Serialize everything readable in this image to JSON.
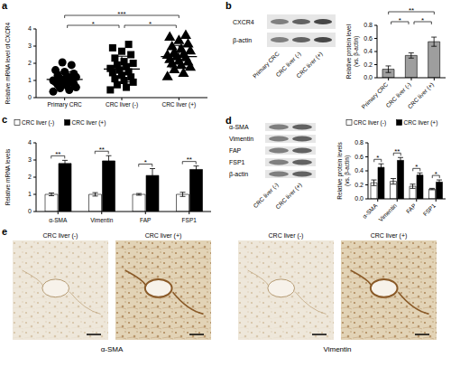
{
  "chart_data": [
    {
      "type": "scatter",
      "title": "a",
      "y_label": "Relative mRNA level of CXCR4",
      "ylim": [
        0,
        4
      ],
      "yticks": [
        0,
        1,
        2,
        3,
        4
      ],
      "series": [
        {
          "name": "Primary CRC",
          "color": "#000000",
          "marker": "circle",
          "values": [
            0.35,
            0.45,
            0.55,
            0.6,
            0.7,
            0.75,
            0.8,
            0.85,
            0.9,
            0.95,
            1.0,
            1.0,
            1.05,
            1.1,
            1.2,
            1.25,
            1.3,
            1.4,
            1.5,
            1.6,
            1.9,
            2.05
          ],
          "mean": 1.06,
          "error": 0.45
        },
        {
          "name": "CRC liver (-)",
          "color": "#000000",
          "marker": "square",
          "values": [
            0.45,
            0.6,
            0.75,
            0.9,
            1.0,
            1.1,
            1.2,
            1.3,
            1.45,
            1.5,
            1.6,
            1.7,
            1.8,
            1.9,
            2.0,
            2.1,
            2.3,
            2.5,
            2.7,
            2.9,
            3.1
          ],
          "mean": 1.66,
          "error": 0.75
        },
        {
          "name": "CRC liver (+)",
          "color": "#000000",
          "marker": "triangle",
          "values": [
            1.2,
            1.4,
            1.6,
            1.75,
            1.85,
            1.95,
            2.05,
            2.1,
            2.2,
            2.3,
            2.35,
            2.45,
            2.5,
            2.6,
            2.7,
            2.8,
            2.95,
            3.1,
            3.3,
            3.5,
            3.6
          ],
          "mean": 2.39,
          "error": 0.65
        }
      ],
      "annotations": [
        {
          "text": "*",
          "from": "Primary CRC",
          "to": "CRC liver (-)"
        },
        {
          "text": "***",
          "from": "Primary CRC",
          "to": "CRC liver (+)"
        },
        {
          "text": "*",
          "from": "CRC liver (-)",
          "to": "CRC liver (+)"
        }
      ]
    },
    {
      "type": "bar",
      "title": "b",
      "y_label": "Relative protein level (vs. β-actin)",
      "categories": [
        "Primary CRC",
        "CRC liver (-)",
        "CRC liver (+)"
      ],
      "values": [
        0.13,
        0.34,
        0.55
      ],
      "errors": [
        0.05,
        0.04,
        0.07
      ],
      "color": "#9e9e9e",
      "ylim": [
        0,
        0.8
      ],
      "yticks": [
        {
          "value": 0,
          "label": "0.0"
        },
        0.2,
        0.4,
        0.6,
        0.8
      ],
      "annotations": [
        {
          "text": "*",
          "from": "Primary CRC",
          "to": "CRC liver (-)"
        },
        {
          "text": "**",
          "from": "Primary CRC",
          "to": "CRC liver (+)"
        },
        {
          "text": "*",
          "from": "CRC liver (-)",
          "to": "CRC liver (+)"
        }
      ]
    },
    {
      "type": "bar",
      "title": "c",
      "y_label": "Relative mRNA levels",
      "categories": [
        "α-SMA",
        "Vimentin",
        "FAP",
        "FSP1"
      ],
      "series": [
        {
          "name": "CRC liver (-)",
          "color": "#ffffff",
          "values": [
            1.0,
            1.0,
            1.0,
            1.0
          ],
          "errors": [
            0.08,
            0.1,
            0.05,
            0.12
          ]
        },
        {
          "name": "CRC liver (+)",
          "color": "#000000",
          "values": [
            2.8,
            2.95,
            2.1,
            2.45
          ],
          "errors": [
            0.18,
            0.3,
            0.4,
            0.2
          ]
        }
      ],
      "ylim": [
        0,
        4
      ],
      "yticks": [
        0,
        1,
        2,
        3,
        4
      ],
      "legend": "top-left",
      "annotations": [
        {
          "text": "**",
          "category": "α-SMA"
        },
        {
          "text": "**",
          "category": "Vimentin"
        },
        {
          "text": "*",
          "category": "FAP"
        },
        {
          "text": "**",
          "category": "FSP1"
        }
      ]
    },
    {
      "type": "bar",
      "title": "d",
      "y_label": "Relative protein levels (vs. β-actin)",
      "categories": [
        "α-SMA",
        "Vimentin",
        "FAP",
        "FSP1"
      ],
      "series": [
        {
          "name": "CRC liver (-)",
          "color": "#ffffff",
          "values": [
            0.23,
            0.25,
            0.18,
            0.14
          ],
          "errors": [
            0.04,
            0.04,
            0.03,
            0.01
          ]
        },
        {
          "name": "CRC liver (+)",
          "color": "#000000",
          "values": [
            0.45,
            0.55,
            0.34,
            0.24
          ],
          "errors": [
            0.05,
            0.04,
            0.03,
            0.03
          ]
        }
      ],
      "ylim": [
        0,
        0.8
      ],
      "yticks": [
        {
          "value": 0,
          "label": "0.0"
        },
        0.2,
        0.4,
        0.6,
        0.8
      ],
      "legend": "top-left",
      "annotations": [
        {
          "text": "*",
          "category": "α-SMA"
        },
        {
          "text": "**",
          "category": "Vimentin"
        },
        {
          "text": "*",
          "category": "FAP"
        },
        {
          "text": "*",
          "category": "FSP1"
        }
      ]
    }
  ],
  "blots": [
    {
      "rows": [
        "CXCR4",
        "β-actin"
      ],
      "lanes": [
        "Primary CRC",
        "CRC liver (-)",
        "CRC liver (+)"
      ]
    },
    {
      "rows": [
        "α-SMA",
        "Vimentin",
        "FAP",
        "FSP1",
        "β-actin"
      ],
      "lanes": [
        "CRC liver (-)",
        "CRC liver (+)"
      ]
    }
  ],
  "ihc": {
    "title": "e",
    "groups": [
      {
        "label": "α-SMA",
        "images": [
          "CRC liver (-)",
          "CRC liver (+)"
        ]
      },
      {
        "label": "Vimentin",
        "images": [
          "CRC liver (-)",
          "CRC liver (+)"
        ]
      }
    ]
  }
}
